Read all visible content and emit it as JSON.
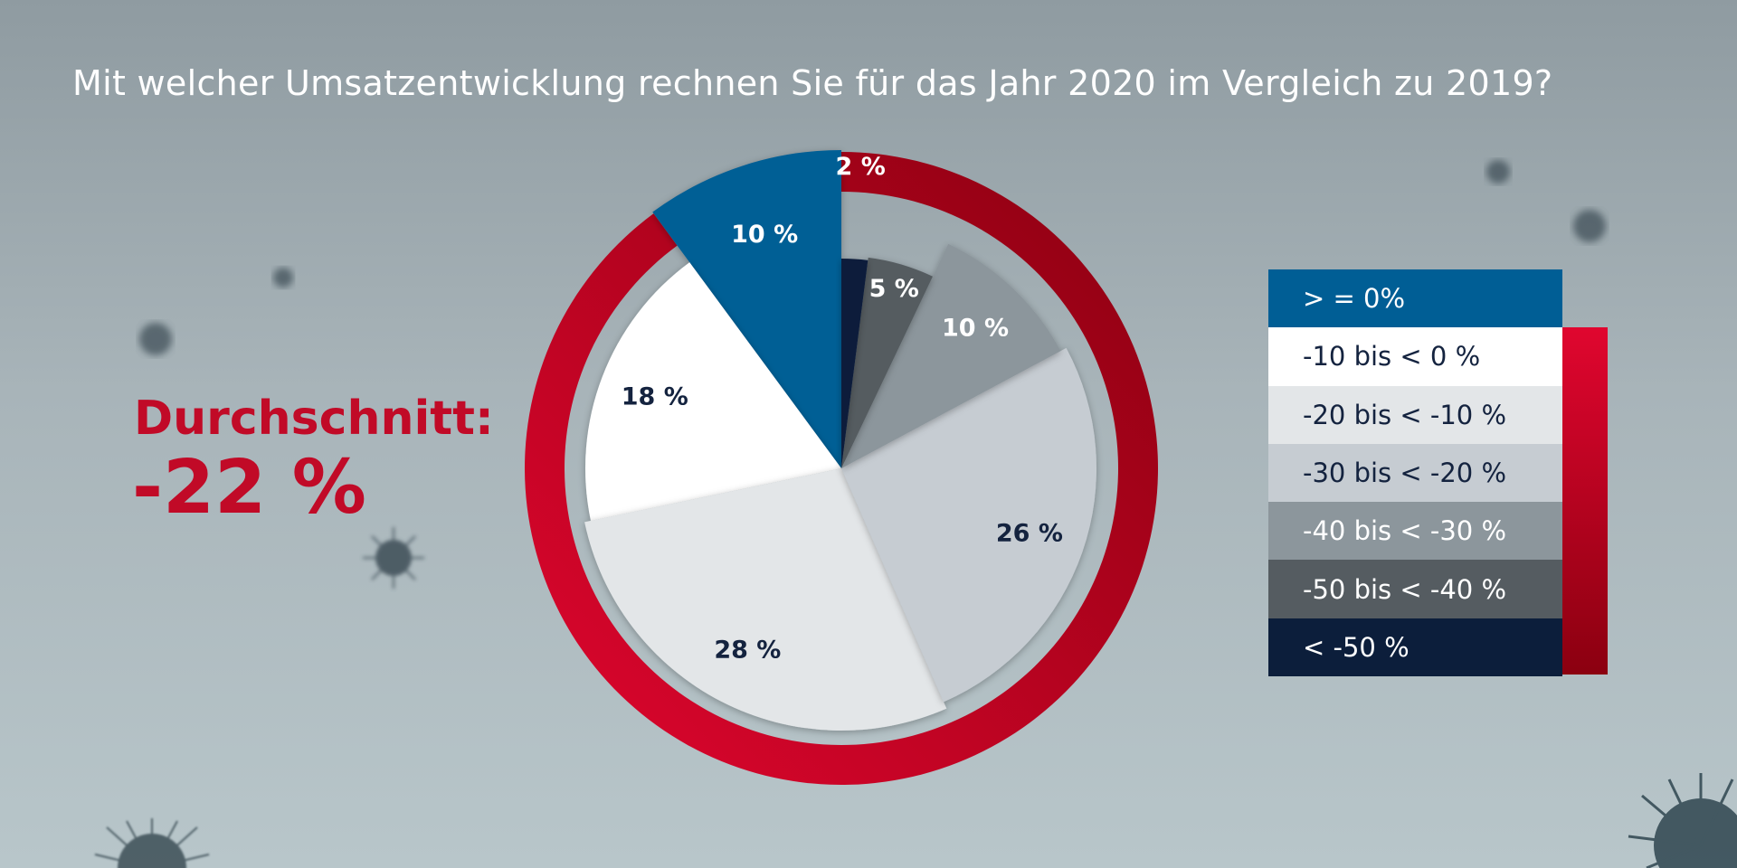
{
  "title": "Mit welcher Umsatzentwicklung rechnen Sie für das Jahr 2020 im Vergleich zu 2019?",
  "average": {
    "label": "Durchschnitt:",
    "value": "-22 %"
  },
  "colors": {
    "ring_light": "#e0062f",
    "ring_dark": "#8b0010",
    "accent_text": "#c10a27"
  },
  "chart_data": {
    "type": "pie",
    "categories": [
      ">= 0%",
      "-10 bis < 0 %",
      "-20 bis < -10 %",
      "-30 bis < -20 %",
      "-40 bis < -30 %",
      "-50 bis < -40 %",
      "< -50 %"
    ],
    "values": [
      10,
      18,
      28,
      26,
      10,
      5,
      2
    ],
    "data_labels": [
      "10 %",
      "18 %",
      "28 %",
      "26 %",
      "10 %",
      "5 %",
      "2 %"
    ],
    "slice_colors": [
      "#005e95",
      "#ffffff",
      "#e3e6e8",
      "#c6ccd2",
      "#8c969c",
      "#555c61",
      "#0c1e3b"
    ],
    "label_colors": [
      "#ffffff",
      "#14233f",
      "#14233f",
      "#14233f",
      "#ffffff",
      "#ffffff",
      "#ffffff"
    ],
    "ring_note": "red ring spans all negative categories"
  },
  "legend": {
    "items": [
      {
        "label": "> = 0%",
        "bg": "#005e95",
        "fg": "#ffffff"
      },
      {
        "label": "-10 bis < 0 %",
        "bg": "#ffffff",
        "fg": "#14233f"
      },
      {
        "label": "-20 bis < -10 %",
        "bg": "#e3e6e8",
        "fg": "#14233f"
      },
      {
        "label": "-30 bis < -20 %",
        "bg": "#c6ccd2",
        "fg": "#14233f"
      },
      {
        "label": "-40 bis < -30 %",
        "bg": "#8c969c",
        "fg": "#ffffff"
      },
      {
        "label": "-50 bis < -40 %",
        "bg": "#555c61",
        "fg": "#ffffff"
      },
      {
        "label": "< -50 %",
        "bg": "#0c1e3b",
        "fg": "#ffffff"
      }
    ]
  }
}
